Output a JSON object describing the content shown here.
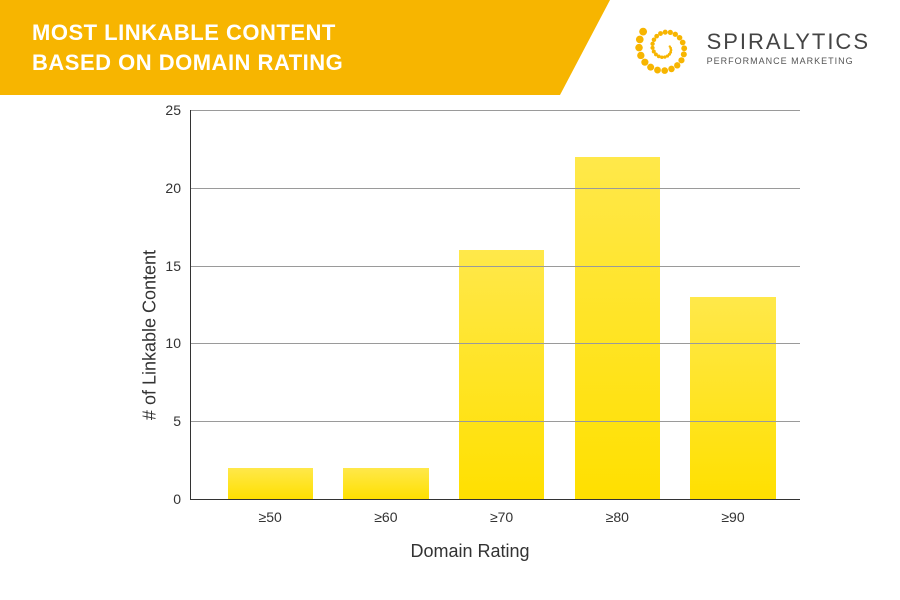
{
  "header": {
    "title": "MOST LINKABLE CONTENT\nBASED ON DOMAIN RATING",
    "banner_bg": "#f7b500",
    "title_color": "#ffffff"
  },
  "logo": {
    "name": "SPIRALYTICS",
    "tagline": "PERFORMANCE MARKETING",
    "dot_color": "#f7b500",
    "name_color": "#444444",
    "tag_color": "#555555"
  },
  "chart": {
    "type": "bar",
    "x_label": "Domain Rating",
    "y_label": "# of Linkable Content",
    "categories": [
      "≥50",
      "≥60",
      "≥70",
      "≥80",
      "≥90"
    ],
    "values": [
      2,
      2,
      16,
      22,
      13
    ],
    "ylim": [
      0,
      25
    ],
    "ytick_step": 5,
    "xtick_positions_pct": [
      13,
      32,
      51,
      70,
      89
    ],
    "bar_width_pct": 14,
    "bar_color_top": "#ffe84a",
    "bar_color_bottom": "#ffe000",
    "grid_color": "#9a9a9a",
    "axis_color": "#333333",
    "background_color": "#ffffff",
    "label_fontsize": 18,
    "tick_fontsize": 14
  }
}
